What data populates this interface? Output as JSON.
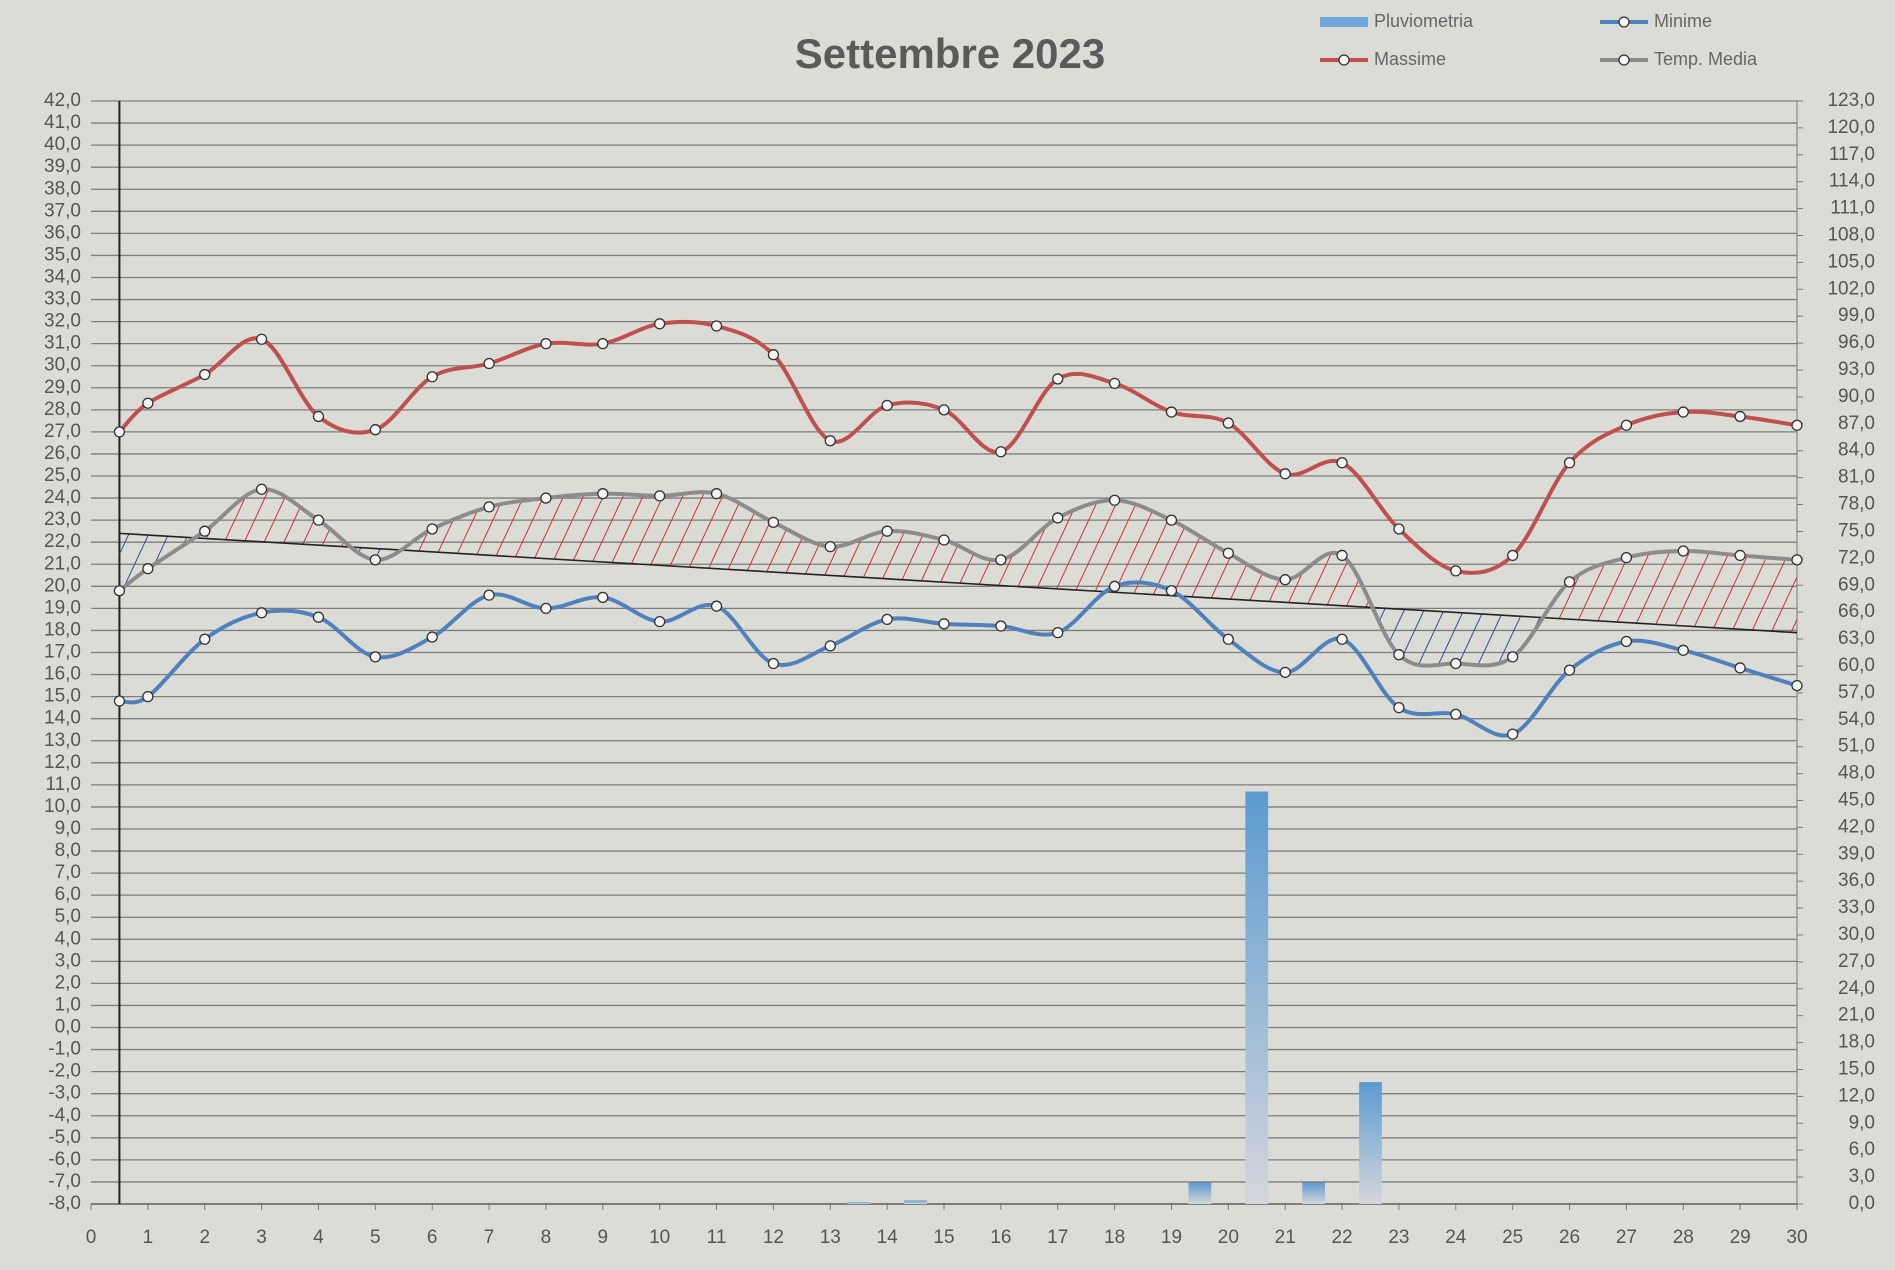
{
  "chart_data": {
    "type": "line",
    "title": "Settembre 2023",
    "x": [
      0.5,
      1,
      2,
      3,
      4,
      5,
      6,
      7,
      8,
      9,
      10,
      11,
      12,
      13,
      14,
      15,
      16,
      17,
      18,
      19,
      20,
      21,
      22,
      23,
      24,
      25,
      26,
      27,
      28,
      29,
      30
    ],
    "series": [
      {
        "name": "Pluviometria",
        "type": "bar",
        "axis": "y2",
        "color": "#6fa8dc",
        "x": [
          13.5,
          14.5,
          19.5,
          20.5,
          21.5,
          22.5
        ],
        "values": [
          0.2,
          0.4,
          2.4,
          46,
          2.4,
          13.6
        ]
      },
      {
        "name": "Massime",
        "type": "line",
        "color": "#c0504d",
        "values": [
          27.0,
          28.3,
          29.6,
          31.2,
          27.7,
          27.1,
          29.5,
          30.1,
          31.0,
          31.0,
          31.9,
          31.8,
          30.5,
          26.6,
          28.2,
          28.0,
          26.1,
          29.4,
          29.2,
          27.9,
          27.4,
          25.1,
          25.6,
          22.6,
          20.7,
          21.4,
          25.6,
          27.3,
          27.9,
          27.7,
          27.3
        ]
      },
      {
        "name": "Minime",
        "type": "line",
        "color": "#4f81bd",
        "values": [
          14.8,
          15.0,
          17.6,
          18.8,
          18.6,
          16.8,
          17.7,
          19.6,
          19.0,
          19.5,
          18.4,
          19.1,
          16.5,
          17.3,
          18.5,
          18.3,
          18.2,
          17.9,
          20.0,
          19.8,
          17.6,
          16.1,
          17.6,
          14.5,
          14.2,
          13.3,
          16.2,
          17.5,
          17.1,
          16.3,
          15.5
        ]
      },
      {
        "name": "Temp. Media",
        "type": "line",
        "color": "#8c8c8c",
        "values": [
          19.8,
          20.8,
          22.5,
          24.4,
          23.0,
          21.2,
          22.6,
          23.6,
          24.0,
          24.2,
          24.1,
          24.2,
          22.9,
          21.8,
          22.5,
          22.1,
          21.2,
          23.1,
          23.9,
          23.0,
          21.5,
          20.3,
          21.4,
          16.9,
          16.5,
          16.8,
          20.2,
          21.3,
          21.6,
          21.4,
          21.2
        ]
      }
    ],
    "trendline": {
      "x": [
        0.5,
        30
      ],
      "values": [
        22.4,
        17.9
      ]
    },
    "xlim": [
      0,
      30
    ],
    "xticks": [
      0,
      1,
      2,
      3,
      4,
      5,
      6,
      7,
      8,
      9,
      10,
      11,
      12,
      13,
      14,
      15,
      16,
      17,
      18,
      19,
      20,
      21,
      22,
      23,
      24,
      25,
      26,
      27,
      28,
      29,
      30
    ],
    "ylim": [
      -8,
      42
    ],
    "yticks": [
      {
        "value": -8,
        "label": "-8,0"
      },
      {
        "value": -7,
        "label": "-7,0"
      },
      {
        "value": -6,
        "label": "-6,0"
      },
      {
        "value": -5,
        "label": "-5,0"
      },
      {
        "value": -4,
        "label": "-4,0"
      },
      {
        "value": -3,
        "label": "-3,0"
      },
      {
        "value": -2,
        "label": "-2,0"
      },
      {
        "value": -1,
        "label": "-1,0"
      },
      {
        "value": 0,
        "label": "0,0"
      },
      {
        "value": 1,
        "label": "1,0"
      },
      {
        "value": 2,
        "label": "2,0"
      },
      {
        "value": 3,
        "label": "3,0"
      },
      {
        "value": 4,
        "label": "4,0"
      },
      {
        "value": 5,
        "label": "5,0"
      },
      {
        "value": 6,
        "label": "6,0"
      },
      {
        "value": 7,
        "label": "7,0"
      },
      {
        "value": 8,
        "label": "8,0"
      },
      {
        "value": 9,
        "label": "9,0"
      },
      {
        "value": 10,
        "label": "10,0"
      },
      {
        "value": 11,
        "label": "11,0"
      },
      {
        "value": 12,
        "label": "12,0"
      },
      {
        "value": 13,
        "label": "13,0"
      },
      {
        "value": 14,
        "label": "14,0"
      },
      {
        "value": 15,
        "label": "15,0"
      },
      {
        "value": 16,
        "label": "16,0"
      },
      {
        "value": 17,
        "label": "17,0"
      },
      {
        "value": 18,
        "label": "18,0"
      },
      {
        "value": 19,
        "label": "19,0"
      },
      {
        "value": 20,
        "label": "20,0"
      },
      {
        "value": 21,
        "label": "21,0"
      },
      {
        "value": 22,
        "label": "22,0"
      },
      {
        "value": 23,
        "label": "23,0"
      },
      {
        "value": 24,
        "label": "24,0"
      },
      {
        "value": 25,
        "label": "25,0"
      },
      {
        "value": 26,
        "label": "26,0"
      },
      {
        "value": 27,
        "label": "27,0"
      },
      {
        "value": 28,
        "label": "28,0"
      },
      {
        "value": 29,
        "label": "29,0"
      },
      {
        "value": 30,
        "label": "30,0"
      },
      {
        "value": 31,
        "label": "31,0"
      },
      {
        "value": 32,
        "label": "32,0"
      },
      {
        "value": 33,
        "label": "33,0"
      },
      {
        "value": 34,
        "label": "34,0"
      },
      {
        "value": 35,
        "label": "35,0"
      },
      {
        "value": 36,
        "label": "36,0"
      },
      {
        "value": 37,
        "label": "37,0"
      },
      {
        "value": 38,
        "label": "38,0"
      },
      {
        "value": 39,
        "label": "39,0"
      },
      {
        "value": 40,
        "label": "40,0"
      },
      {
        "value": 41,
        "label": "41,0"
      },
      {
        "value": 42,
        "label": "42,0"
      }
    ],
    "y2lim": [
      0,
      123
    ],
    "y2ticks": [
      {
        "value": 0,
        "label": "0,0"
      },
      {
        "value": 3,
        "label": "3,0"
      },
      {
        "value": 6,
        "label": "6,0"
      },
      {
        "value": 9,
        "label": "9,0"
      },
      {
        "value": 12,
        "label": "12,0"
      },
      {
        "value": 15,
        "label": "15,0"
      },
      {
        "value": 18,
        "label": "18,0"
      },
      {
        "value": 21,
        "label": "21,0"
      },
      {
        "value": 24,
        "label": "24,0"
      },
      {
        "value": 27,
        "label": "27,0"
      },
      {
        "value": 30,
        "label": "30,0"
      },
      {
        "value": 33,
        "label": "33,0"
      },
      {
        "value": 36,
        "label": "36,0"
      },
      {
        "value": 39,
        "label": "39,0"
      },
      {
        "value": 42,
        "label": "42,0"
      },
      {
        "value": 45,
        "label": "45,0"
      },
      {
        "value": 48,
        "label": "48,0"
      },
      {
        "value": 51,
        "label": "51,0"
      },
      {
        "value": 54,
        "label": "54,0"
      },
      {
        "value": 57,
        "label": "57,0"
      },
      {
        "value": 60,
        "label": "60,0"
      },
      {
        "value": 63,
        "label": "63,0"
      },
      {
        "value": 66,
        "label": "66,0"
      },
      {
        "value": 69,
        "label": "69,0"
      },
      {
        "value": 72,
        "label": "72,0"
      },
      {
        "value": 75,
        "label": "75,0"
      },
      {
        "value": 78,
        "label": "78,0"
      },
      {
        "value": 81,
        "label": "81,0"
      },
      {
        "value": 84,
        "label": "84,0"
      },
      {
        "value": 87,
        "label": "87,0"
      },
      {
        "value": 90,
        "label": "90,0"
      },
      {
        "value": 93,
        "label": "93,0"
      },
      {
        "value": 96,
        "label": "96,0"
      },
      {
        "value": 99,
        "label": "99,0"
      },
      {
        "value": 102,
        "label": "102,0"
      },
      {
        "value": 105,
        "label": "105,0"
      },
      {
        "value": 108,
        "label": "108,0"
      },
      {
        "value": 111,
        "label": "111,0"
      },
      {
        "value": 114,
        "label": "114,0"
      },
      {
        "value": 117,
        "label": "117,0"
      },
      {
        "value": 120,
        "label": "120,0"
      },
      {
        "value": 123,
        "label": "123,0"
      }
    ],
    "grid": true
  }
}
